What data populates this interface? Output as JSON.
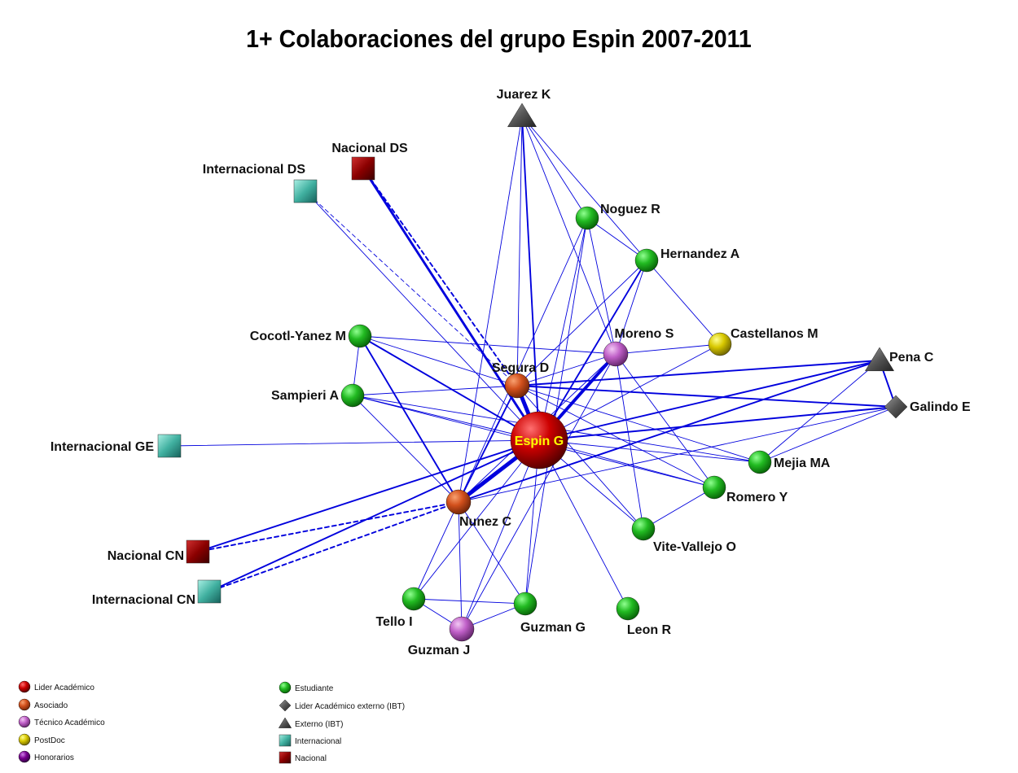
{
  "title": "1+ Colaboraciones del grupo Espin 2007-2011",
  "colors": {
    "edge": "#0000dd",
    "lider": "#cc0000",
    "asociado": "#d2501c",
    "tecnico": "#c060c8",
    "postdoc": "#d8c800",
    "honorarios": "#780090",
    "estudiante": "#22bb22",
    "externo": "#555555",
    "internacional": "#40b0a0",
    "nacional": "#8b0000"
  },
  "nodes": [
    {
      "id": "espin",
      "label": "Espin G",
      "category": "lider",
      "shape": "circle"
    },
    {
      "id": "segura",
      "label": "Segura D",
      "category": "asociado",
      "shape": "circle"
    },
    {
      "id": "nunez",
      "label": "Nunez C",
      "category": "asociado",
      "shape": "circle"
    },
    {
      "id": "moreno",
      "label": "Moreno S",
      "category": "tecnico",
      "shape": "circle"
    },
    {
      "id": "guzmanj",
      "label": "Guzman J",
      "category": "tecnico",
      "shape": "circle"
    },
    {
      "id": "castellanos",
      "label": "Castellanos M",
      "category": "postdoc",
      "shape": "circle"
    },
    {
      "id": "noguez",
      "label": "Noguez R",
      "category": "estudiante",
      "shape": "circle"
    },
    {
      "id": "hernandez",
      "label": "Hernandez A",
      "category": "estudiante",
      "shape": "circle"
    },
    {
      "id": "cocotl",
      "label": "Cocotl-Yanez M",
      "category": "estudiante",
      "shape": "circle"
    },
    {
      "id": "sampieri",
      "label": "Sampieri A",
      "category": "estudiante",
      "shape": "circle"
    },
    {
      "id": "mejia",
      "label": "Mejia MA",
      "category": "estudiante",
      "shape": "circle"
    },
    {
      "id": "romero",
      "label": "Romero Y",
      "category": "estudiante",
      "shape": "circle"
    },
    {
      "id": "vite",
      "label": "Vite-Vallejo O",
      "category": "estudiante",
      "shape": "circle"
    },
    {
      "id": "leon",
      "label": "Leon R",
      "category": "estudiante",
      "shape": "circle"
    },
    {
      "id": "tello",
      "label": "Tello I",
      "category": "estudiante",
      "shape": "circle"
    },
    {
      "id": "guzmang",
      "label": "Guzman G",
      "category": "estudiante",
      "shape": "circle"
    },
    {
      "id": "juarez",
      "label": "Juarez K",
      "category": "externo",
      "shape": "triangle"
    },
    {
      "id": "pena",
      "label": "Pena C",
      "category": "externo",
      "shape": "triangle"
    },
    {
      "id": "galindo",
      "label": "Galindo E",
      "category": "externo",
      "shape": "diamond"
    },
    {
      "id": "nacds",
      "label": "Nacional DS",
      "category": "nacional",
      "shape": "square"
    },
    {
      "id": "intds",
      "label": "Internacional DS",
      "category": "internacional",
      "shape": "square"
    },
    {
      "id": "intge",
      "label": "Internacional GE",
      "category": "internacional",
      "shape": "square"
    },
    {
      "id": "naccn",
      "label": "Nacional CN",
      "category": "nacional",
      "shape": "square"
    },
    {
      "id": "intcn",
      "label": "Internacional CN",
      "category": "internacional",
      "shape": "square"
    }
  ],
  "edges": [
    {
      "s": "espin",
      "t": "segura",
      "w": 5
    },
    {
      "s": "espin",
      "t": "nunez",
      "w": 5
    },
    {
      "s": "espin",
      "t": "moreno",
      "w": 4
    },
    {
      "s": "espin",
      "t": "hernandez",
      "w": 2
    },
    {
      "s": "espin",
      "t": "cocotl",
      "w": 2
    },
    {
      "s": "espin",
      "t": "sampieri",
      "w": 1
    },
    {
      "s": "espin",
      "t": "noguez",
      "w": 1
    },
    {
      "s": "espin",
      "t": "juarez",
      "w": 2
    },
    {
      "s": "espin",
      "t": "pena",
      "w": 2
    },
    {
      "s": "espin",
      "t": "galindo",
      "w": 2
    },
    {
      "s": "espin",
      "t": "mejia",
      "w": 1
    },
    {
      "s": "espin",
      "t": "romero",
      "w": 1
    },
    {
      "s": "espin",
      "t": "vite",
      "w": 1
    },
    {
      "s": "espin",
      "t": "leon",
      "w": 1
    },
    {
      "s": "espin",
      "t": "tello",
      "w": 1
    },
    {
      "s": "espin",
      "t": "guzmang",
      "w": 1
    },
    {
      "s": "espin",
      "t": "guzmanj",
      "w": 1
    },
    {
      "s": "espin",
      "t": "castellanos",
      "w": 1
    },
    {
      "s": "espin",
      "t": "intge",
      "w": 1
    },
    {
      "s": "espin",
      "t": "nacds",
      "w": 3
    },
    {
      "s": "espin",
      "t": "intds",
      "w": 1
    },
    {
      "s": "espin",
      "t": "naccn",
      "w": 2
    },
    {
      "s": "espin",
      "t": "intcn",
      "w": 2
    },
    {
      "s": "segura",
      "t": "nunez",
      "w": 2
    },
    {
      "s": "segura",
      "t": "juarez",
      "w": 1
    },
    {
      "s": "segura",
      "t": "hernandez",
      "w": 1
    },
    {
      "s": "segura",
      "t": "moreno",
      "w": 1
    },
    {
      "s": "segura",
      "t": "pena",
      "w": 2
    },
    {
      "s": "segura",
      "t": "galindo",
      "w": 2
    },
    {
      "s": "segura",
      "t": "sampieri",
      "w": 1
    },
    {
      "s": "segura",
      "t": "cocotl",
      "w": 1
    },
    {
      "s": "segura",
      "t": "mejia",
      "w": 1
    },
    {
      "s": "segura",
      "t": "romero",
      "w": 1
    },
    {
      "s": "segura",
      "t": "vite",
      "w": 1
    },
    {
      "s": "segura",
      "t": "nacds",
      "w": 2,
      "dashed": true
    },
    {
      "s": "segura",
      "t": "intds",
      "w": 1,
      "dashed": true
    },
    {
      "s": "nunez",
      "t": "juarez",
      "w": 1
    },
    {
      "s": "nunez",
      "t": "noguez",
      "w": 1
    },
    {
      "s": "nunez",
      "t": "cocotl",
      "w": 2
    },
    {
      "s": "nunez",
      "t": "sampieri",
      "w": 1
    },
    {
      "s": "nunez",
      "t": "moreno",
      "w": 1
    },
    {
      "s": "nunez",
      "t": "tello",
      "w": 1
    },
    {
      "s": "nunez",
      "t": "guzmanj",
      "w": 1
    },
    {
      "s": "nunez",
      "t": "guzmang",
      "w": 1
    },
    {
      "s": "nunez",
      "t": "naccn",
      "w": 2,
      "dashed": true
    },
    {
      "s": "nunez",
      "t": "intcn",
      "w": 2,
      "dashed": true
    },
    {
      "s": "moreno",
      "t": "juarez",
      "w": 1
    },
    {
      "s": "moreno",
      "t": "cocotl",
      "w": 1
    },
    {
      "s": "moreno",
      "t": "castellanos",
      "w": 1
    },
    {
      "s": "moreno",
      "t": "hernandez",
      "w": 1
    },
    {
      "s": "moreno",
      "t": "noguez",
      "w": 1
    },
    {
      "s": "moreno",
      "t": "vite",
      "w": 1
    },
    {
      "s": "moreno",
      "t": "romero",
      "w": 1
    },
    {
      "s": "moreno",
      "t": "guzmanj",
      "w": 1
    },
    {
      "s": "juarez",
      "t": "noguez",
      "w": 1
    },
    {
      "s": "juarez",
      "t": "hernandez",
      "w": 1
    },
    {
      "s": "hernandez",
      "t": "castellanos",
      "w": 1
    },
    {
      "s": "noguez",
      "t": "hernandez",
      "w": 1
    },
    {
      "s": "noguez",
      "t": "guzmang",
      "w": 1
    },
    {
      "s": "cocotl",
      "t": "sampieri",
      "w": 1
    },
    {
      "s": "sampieri",
      "t": "mejia",
      "w": 1
    },
    {
      "s": "sampieri",
      "t": "romero",
      "w": 1
    },
    {
      "s": "pena",
      "t": "galindo",
      "w": 2
    },
    {
      "s": "pena",
      "t": "mejia",
      "w": 1
    },
    {
      "s": "pena",
      "t": "nunez",
      "w": 2
    },
    {
      "s": "galindo",
      "t": "mejia",
      "w": 1
    },
    {
      "s": "galindo",
      "t": "nunez",
      "w": 1
    },
    {
      "s": "romero",
      "t": "vite",
      "w": 1
    },
    {
      "s": "tello",
      "t": "guzmanj",
      "w": 1
    },
    {
      "s": "tello",
      "t": "guzmang",
      "w": 1
    },
    {
      "s": "guzmanj",
      "t": "guzmang",
      "w": 1
    }
  ],
  "legend": [
    {
      "label": "Lider Académico",
      "category": "lider",
      "shape": "circle"
    },
    {
      "label": "Asociado",
      "category": "asociado",
      "shape": "circle"
    },
    {
      "label": "Técnico Académico",
      "category": "tecnico",
      "shape": "circle"
    },
    {
      "label": "PostDoc",
      "category": "postdoc",
      "shape": "circle"
    },
    {
      "label": "Honorarios",
      "category": "honorarios",
      "shape": "circle"
    },
    {
      "label": "Estudiante",
      "category": "estudiante",
      "shape": "circle"
    },
    {
      "label": "Lider Académico externo (IBT)",
      "category": "externo",
      "shape": "diamond"
    },
    {
      "label": "Externo (IBT)",
      "category": "externo",
      "shape": "triangle"
    },
    {
      "label": "Internacional",
      "category": "internacional",
      "shape": "square"
    },
    {
      "label": "Nacional",
      "category": "nacional",
      "shape": "square"
    }
  ]
}
